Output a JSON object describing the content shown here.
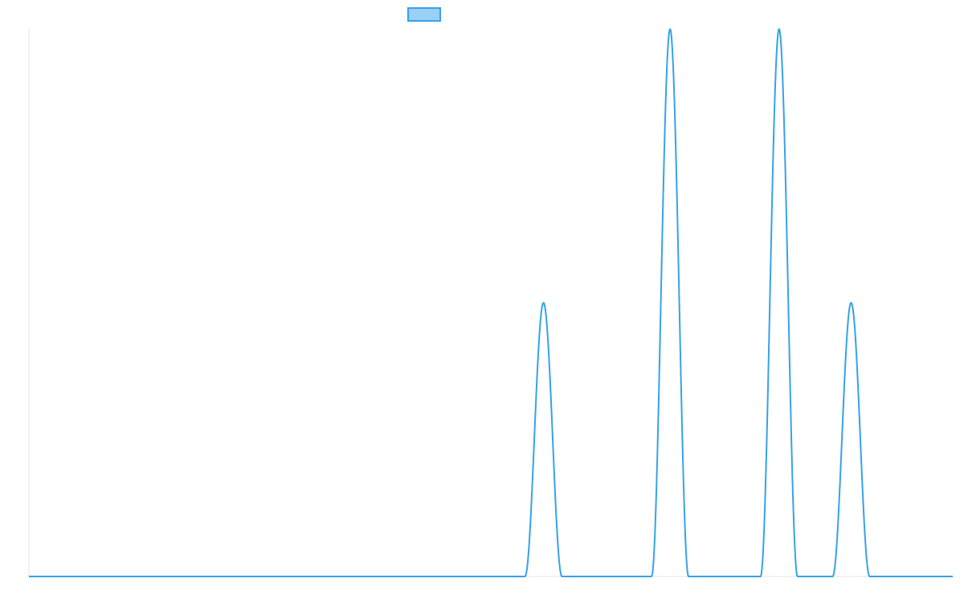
{
  "chart_data": {
    "type": "line",
    "title": "",
    "xlabel": "",
    "ylabel": "",
    "grid": false,
    "legend": {
      "position": "top-center"
    },
    "xlim": [
      0,
      100
    ],
    "ylim": [
      0,
      1
    ],
    "series": [
      {
        "name": "",
        "color": "#36a2eb",
        "fill_color": "#9ad0f5",
        "peaks": [
          {
            "center": 55.7,
            "height": 0.5,
            "width": 2.0
          },
          {
            "center": 69.4,
            "height": 1.0,
            "width": 2.0
          },
          {
            "center": 81.2,
            "height": 1.0,
            "width": 2.0
          },
          {
            "center": 89.0,
            "height": 0.5,
            "width": 2.0
          }
        ]
      }
    ]
  }
}
